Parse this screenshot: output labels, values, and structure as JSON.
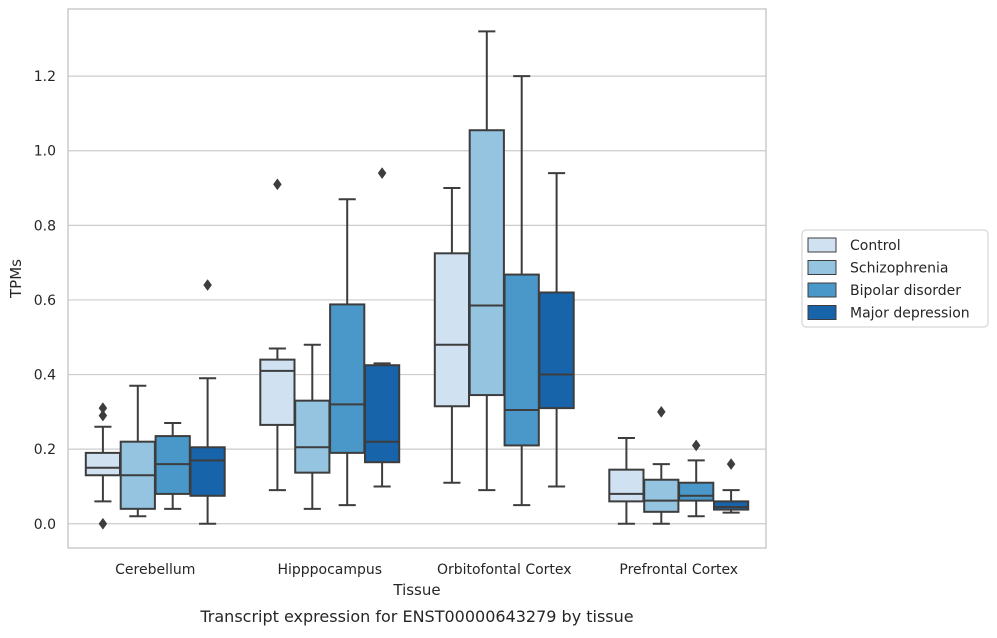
{
  "chart_data": {
    "type": "box",
    "title": "",
    "caption": "Transcript expression for ENST00000643279 by tissue",
    "xlabel": "Tissue",
    "ylabel": "TPMs",
    "ylim": [
      -0.065,
      1.38
    ],
    "yticks": [
      "0.0",
      "0.2",
      "0.4",
      "0.6",
      "0.8",
      "1.0",
      "1.2"
    ],
    "ytick_values": [
      0.0,
      0.2,
      0.4,
      0.6,
      0.8,
      1.0,
      1.2
    ],
    "grid": "horizontal",
    "legend_position": "right",
    "categories": [
      "Cerebellum",
      "Hipppocampus",
      "Orbitofontal Cortex",
      "Prefrontal Cortex"
    ],
    "series": [
      {
        "name": "Control",
        "color": "#d0e1f2",
        "boxes": [
          {
            "whislo": 0.06,
            "q1": 0.13,
            "med": 0.15,
            "q3": 0.19,
            "whishi": 0.26,
            "fliers": [
              0.0,
              0.29,
              0.31
            ]
          },
          {
            "whislo": 0.09,
            "q1": 0.265,
            "med": 0.41,
            "q3": 0.44,
            "whishi": 0.47,
            "fliers": [
              0.91
            ]
          },
          {
            "whislo": 0.11,
            "q1": 0.315,
            "med": 0.48,
            "q3": 0.725,
            "whishi": 0.9,
            "fliers": []
          },
          {
            "whislo": 0.0,
            "q1": 0.06,
            "med": 0.08,
            "q3": 0.145,
            "whishi": 0.23,
            "fliers": []
          }
        ]
      },
      {
        "name": "Schizophrenia",
        "color": "#94c4df",
        "boxes": [
          {
            "whislo": 0.02,
            "q1": 0.04,
            "med": 0.13,
            "q3": 0.22,
            "whishi": 0.37,
            "fliers": []
          },
          {
            "whislo": 0.04,
            "q1": 0.137,
            "med": 0.205,
            "q3": 0.33,
            "whishi": 0.48,
            "fliers": []
          },
          {
            "whislo": 0.09,
            "q1": 0.345,
            "med": 0.585,
            "q3": 1.055,
            "whishi": 1.32,
            "fliers": []
          },
          {
            "whislo": 0.0,
            "q1": 0.032,
            "med": 0.062,
            "q3": 0.118,
            "whishi": 0.16,
            "fliers": [
              0.3
            ]
          }
        ]
      },
      {
        "name": "Bipolar disorder",
        "color": "#4a98c9",
        "boxes": [
          {
            "whislo": 0.04,
            "q1": 0.08,
            "med": 0.16,
            "q3": 0.235,
            "whishi": 0.27,
            "fliers": []
          },
          {
            "whislo": 0.05,
            "q1": 0.19,
            "med": 0.32,
            "q3": 0.588,
            "whishi": 0.87,
            "fliers": []
          },
          {
            "whislo": 0.05,
            "q1": 0.21,
            "med": 0.305,
            "q3": 0.668,
            "whishi": 1.2,
            "fliers": []
          },
          {
            "whislo": 0.02,
            "q1": 0.062,
            "med": 0.075,
            "q3": 0.11,
            "whishi": 0.17,
            "fliers": [
              0.21
            ]
          }
        ]
      },
      {
        "name": "Major depression",
        "color": "#1764ab",
        "boxes": [
          {
            "whislo": 0.0,
            "q1": 0.075,
            "med": 0.17,
            "q3": 0.205,
            "whishi": 0.39,
            "fliers": [
              0.64
            ]
          },
          {
            "whislo": 0.1,
            "q1": 0.165,
            "med": 0.22,
            "q3": 0.425,
            "whishi": 0.43,
            "fliers": [
              0.94
            ]
          },
          {
            "whislo": 0.1,
            "q1": 0.31,
            "med": 0.4,
            "q3": 0.62,
            "whishi": 0.94,
            "fliers": []
          },
          {
            "whislo": 0.03,
            "q1": 0.038,
            "med": 0.045,
            "q3": 0.06,
            "whishi": 0.09,
            "fliers": [
              0.16
            ]
          }
        ]
      }
    ]
  },
  "colors": {
    "axes_edge": "#cccccc",
    "grid": "#cccccc",
    "box_line": "#3d3d3d"
  }
}
